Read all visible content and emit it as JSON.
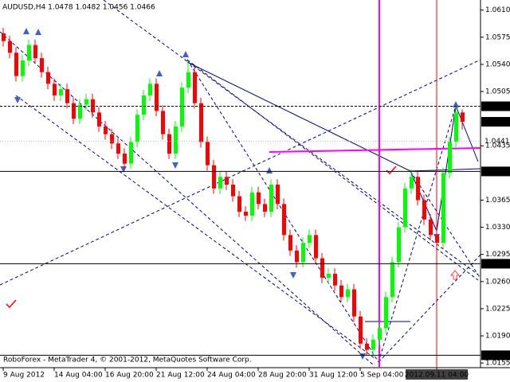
{
  "chart_data": {
    "type": "candlestick",
    "title": "AUDUSD,H4  1.0478 1.0482 1.0456 1.0466",
    "footer": "RoboForex - MetaTrader 4, © 2001-2012, MetaQuotes Software Corp.",
    "categories": [
      "9 Aug 2012",
      null,
      null,
      null,
      null,
      null,
      null,
      null,
      "14 Aug 04:00",
      null,
      null,
      null,
      null,
      null,
      null,
      null,
      "16 Aug 20:00",
      null,
      null,
      null,
      null,
      null,
      null,
      null,
      "21 Aug 12:00",
      null,
      null,
      null,
      null,
      null,
      null,
      null,
      "24 Aug 04:00",
      null,
      null,
      null,
      null,
      null,
      null,
      null,
      "28 Aug 20:00",
      null,
      null,
      null,
      null,
      null,
      null,
      null,
      "31 Aug 12:00",
      null,
      null,
      null,
      null,
      null,
      null,
      null,
      "5 Sep 04:00",
      null,
      null,
      null,
      null,
      null,
      null,
      null,
      null,
      null,
      null,
      null,
      "2012.09.11 04:00",
      null,
      null,
      null,
      null
    ],
    "open": [
      1.058,
      1.057,
      1.0555,
      1.0525,
      1.0545,
      1.0565,
      1.0548,
      1.053,
      1.0515,
      1.05,
      1.0508,
      1.049,
      1.047,
      1.0488,
      1.0495,
      1.0478,
      1.046,
      1.045,
      1.0438,
      1.0425,
      1.0412,
      1.044,
      1.0475,
      1.05,
      1.0515,
      1.048,
      1.045,
      1.0425,
      1.046,
      1.051,
      1.053,
      1.049,
      1.044,
      1.041,
      1.038,
      1.0395,
      1.0385,
      1.037,
      1.035,
      1.0345,
      1.0375,
      1.036,
      1.035,
      1.0385,
      1.036,
      1.032,
      1.03,
      1.0285,
      1.031,
      1.032,
      1.029,
      1.0265,
      1.027,
      1.0255,
      1.024,
      1.025,
      1.0215,
      1.018,
      1.0172,
      1.0185,
      1.02,
      1.024,
      1.0285,
      1.033,
      1.038,
      1.0395,
      1.0365,
      1.034,
      1.032,
      1.031,
      1.04,
      1.044,
      1.0478
    ],
    "high": [
      1.0587,
      1.0577,
      1.0562,
      1.0552,
      1.0572,
      1.0572,
      1.0555,
      1.0537,
      1.0522,
      1.0515,
      1.0515,
      1.0497,
      1.0495,
      1.0502,
      1.0502,
      1.0485,
      1.0467,
      1.0457,
      1.0445,
      1.0432,
      1.0447,
      1.0482,
      1.0507,
      1.0522,
      1.0522,
      1.0487,
      1.0457,
      1.0467,
      1.0517,
      1.0545,
      1.0537,
      1.0497,
      1.0447,
      1.0417,
      1.0402,
      1.0402,
      1.0392,
      1.0377,
      1.0357,
      1.0382,
      1.0382,
      1.0367,
      1.0392,
      1.0392,
      1.0367,
      1.0327,
      1.0307,
      1.0317,
      1.0327,
      1.0327,
      1.0297,
      1.0277,
      1.0277,
      1.0262,
      1.0257,
      1.0257,
      1.0222,
      1.0187,
      1.0192,
      1.0207,
      1.0247,
      1.0292,
      1.0337,
      1.0387,
      1.0405,
      1.0402,
      1.0372,
      1.0347,
      1.0327,
      1.0407,
      1.0447,
      1.0486,
      1.0482
    ],
    "low": [
      1.0563,
      1.0548,
      1.0518,
      1.0518,
      1.0538,
      1.0541,
      1.0523,
      1.0508,
      1.0493,
      1.0493,
      1.0483,
      1.0463,
      1.0463,
      1.0481,
      1.0471,
      1.0453,
      1.0443,
      1.0431,
      1.0418,
      1.0405,
      1.0405,
      1.0433,
      1.0468,
      1.0493,
      1.0473,
      1.0443,
      1.0418,
      1.0418,
      1.0453,
      1.0503,
      1.0483,
      1.0433,
      1.0403,
      1.0373,
      1.0373,
      1.0378,
      1.0363,
      1.0343,
      1.0338,
      1.0338,
      1.0353,
      1.0343,
      1.0343,
      1.0353,
      1.0313,
      1.0293,
      1.0278,
      1.0278,
      1.0303,
      1.0283,
      1.0258,
      1.0258,
      1.0248,
      1.0233,
      1.0233,
      1.0208,
      1.0173,
      1.0165,
      1.0165,
      1.0178,
      1.0193,
      1.0233,
      1.0278,
      1.0323,
      1.0373,
      1.0358,
      1.0333,
      1.0313,
      1.0303,
      1.0303,
      1.0393,
      1.0433,
      1.0456
    ],
    "close": [
      1.057,
      1.0555,
      1.0525,
      1.0545,
      1.0565,
      1.0548,
      1.053,
      1.0515,
      1.05,
      1.0508,
      1.049,
      1.047,
      1.0488,
      1.0495,
      1.0478,
      1.046,
      1.045,
      1.0438,
      1.0425,
      1.0412,
      1.044,
      1.0475,
      1.05,
      1.0515,
      1.048,
      1.045,
      1.0425,
      1.046,
      1.051,
      1.053,
      1.049,
      1.044,
      1.041,
      1.038,
      1.0395,
      1.0385,
      1.037,
      1.035,
      1.0345,
      1.0375,
      1.036,
      1.035,
      1.0385,
      1.036,
      1.032,
      1.03,
      1.0285,
      1.031,
      1.032,
      1.029,
      1.0265,
      1.027,
      1.0255,
      1.024,
      1.025,
      1.0215,
      1.018,
      1.0172,
      1.0185,
      1.02,
      1.024,
      1.0285,
      1.033,
      1.038,
      1.0395,
      1.0365,
      1.034,
      1.032,
      1.031,
      1.04,
      1.044,
      1.0478,
      1.0466
    ],
    "up_color": "#00ff00",
    "down_color": "#ff0000",
    "ylim": [
      1.0149,
      1.0623
    ],
    "yticks": [
      {
        "value": 1.061,
        "label": "1.0610"
      },
      1.0575,
      {
        "value": 1.054,
        "label": "1.0540"
      },
      1.0505,
      1.0435,
      1.0365,
      {
        "value": 1.033,
        "label": "1.0330"
      },
      1.0295,
      {
        "value": 1.026,
        "label": "1.0260"
      },
      1.0225,
      {
        "value": 1.019,
        "label": "1.0190"
      },
      1.0155
    ],
    "levels": [
      {
        "value": 1.0486,
        "line": "dashed",
        "box": true
      },
      {
        "value": 1.0466,
        "line": "none",
        "box": true
      },
      {
        "value": 1.0441,
        "line": "dotted",
        "box": false
      },
      {
        "value": 1.0402,
        "line": "solid",
        "box": true
      },
      {
        "value": 1.0283,
        "line": "solid",
        "box": true
      },
      {
        "value": 1.0165,
        "line": "solid",
        "box": true
      }
    ],
    "vlines": [
      {
        "index": 59,
        "color": "#ff00ff"
      },
      {
        "index": 68,
        "color": "#ff0000"
      }
    ]
  }
}
